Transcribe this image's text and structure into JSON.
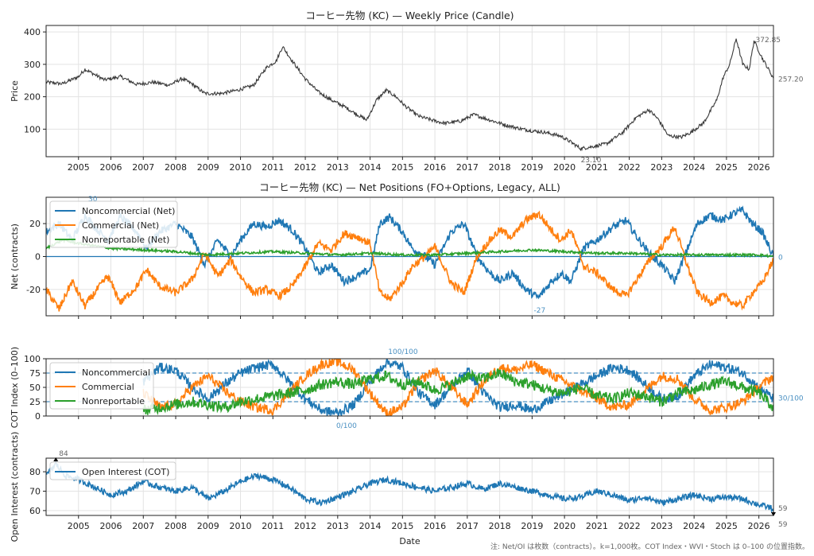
{
  "chart_data": [
    {
      "type": "line",
      "title": "コーヒー先物 (KC) — Weekly Price (Candle)",
      "xlabel": "",
      "ylabel": "Price",
      "xlim": [
        2004.0,
        2026.45
      ],
      "ylim": [
        15,
        420
      ],
      "yticks": [
        100,
        200,
        300,
        400
      ],
      "xticks": [
        2005,
        2006,
        2007,
        2008,
        2009,
        2010,
        2011,
        2012,
        2013,
        2014,
        2015,
        2016,
        2017,
        2018,
        2019,
        2020,
        2021,
        2022,
        2023,
        2024,
        2025,
        2026
      ],
      "grid": true,
      "series": [
        {
          "color": "#3a3a3a",
          "noise": 9,
          "x": [
            2004.0,
            2004.5,
            2005.0,
            2005.2,
            2005.8,
            2006.3,
            2006.8,
            2007.3,
            2007.8,
            2008.2,
            2008.5,
            2008.9,
            2009.4,
            2009.9,
            2010.4,
            2010.8,
            2011.1,
            2011.3,
            2011.6,
            2012.0,
            2012.4,
            2012.8,
            2013.2,
            2013.6,
            2013.9,
            2014.2,
            2014.5,
            2014.8,
            2015.1,
            2015.5,
            2015.9,
            2016.3,
            2016.8,
            2017.2,
            2017.7,
            2018.2,
            2018.7,
            2019.0,
            2019.4,
            2019.9,
            2020.2,
            2020.5,
            2020.8,
            2021.3,
            2021.8,
            2022.2,
            2022.6,
            2022.9,
            2023.2,
            2023.6,
            2023.9,
            2024.3,
            2024.7,
            2024.9,
            2025.1,
            2025.3,
            2025.5,
            2025.7,
            2025.85,
            2026.1,
            2026.45
          ],
          "y": [
            245,
            240,
            262,
            285,
            252,
            262,
            238,
            245,
            236,
            256,
            240,
            210,
            210,
            220,
            235,
            290,
            310,
            355,
            310,
            255,
            215,
            190,
            170,
            145,
            128,
            190,
            220,
            200,
            170,
            140,
            128,
            118,
            125,
            145,
            128,
            112,
            100,
            95,
            90,
            78,
            60,
            40,
            45,
            55,
            90,
            135,
            160,
            130,
            80,
            75,
            90,
            120,
            190,
            260,
            300,
            380,
            300,
            285,
            372.85,
            320,
            257.2
          ]
        }
      ],
      "annotations": [
        {
          "label": "372.85",
          "x": 2025.85,
          "y": 372.85
        },
        {
          "label": "257.20",
          "x": 2026.45,
          "y": 257.2
        },
        {
          "label": "23.10",
          "x": 2020.6,
          "y": 23.1
        }
      ]
    },
    {
      "type": "line",
      "title": "コーヒー先物 (KC) — Net Positions (FO+Options, Legacy, ALL)",
      "xlabel": "",
      "ylabel": "Net (contracts)",
      "xlim": [
        2004.0,
        2026.45
      ],
      "ylim": [
        -36,
        36
      ],
      "yticks": [
        -20,
        0,
        20
      ],
      "grid": true,
      "legend": "top-left",
      "hline": 0,
      "series": [
        {
          "name": "Noncommercial (Net)",
          "color": "#1f77b4",
          "noise": 4,
          "x": [
            2004.0,
            2004.4,
            2004.8,
            2005.2,
            2005.5,
            2005.9,
            2006.3,
            2006.8,
            2007.1,
            2007.5,
            2008.0,
            2008.5,
            2008.9,
            2009.3,
            2009.7,
            2010.0,
            2010.4,
            2010.8,
            2011.2,
            2011.6,
            2012.0,
            2012.4,
            2012.8,
            2013.2,
            2013.6,
            2014.0,
            2014.3,
            2014.6,
            2015.0,
            2015.3,
            2015.7,
            2016.0,
            2016.5,
            2016.9,
            2017.3,
            2017.7,
            2018.0,
            2018.4,
            2018.8,
            2019.2,
            2019.6,
            2019.9,
            2020.2,
            2020.6,
            2021.0,
            2021.5,
            2021.9,
            2022.3,
            2022.7,
            2023.0,
            2023.4,
            2023.8,
            2024.1,
            2024.5,
            2024.9,
            2025.2,
            2025.5,
            2025.8,
            2026.1,
            2026.45
          ],
          "y": [
            15,
            20,
            10,
            25,
            18,
            10,
            24,
            15,
            5,
            15,
            20,
            12,
            -5,
            10,
            0,
            10,
            20,
            18,
            22,
            16,
            5,
            -10,
            -5,
            -15,
            -12,
            -8,
            20,
            24,
            15,
            5,
            0,
            -5,
            15,
            20,
            0,
            -10,
            -15,
            -10,
            -20,
            -25,
            -15,
            -10,
            -15,
            5,
            10,
            18,
            22,
            10,
            0,
            -5,
            -15,
            5,
            20,
            25,
            22,
            26,
            28,
            20,
            15,
            0
          ]
        },
        {
          "name": "Commercial (Net)",
          "color": "#ff7f0e",
          "noise": 4,
          "x": [
            2004.0,
            2004.4,
            2004.8,
            2005.2,
            2005.5,
            2005.9,
            2006.3,
            2006.8,
            2007.1,
            2007.5,
            2008.0,
            2008.5,
            2008.9,
            2009.3,
            2009.7,
            2010.0,
            2010.4,
            2010.8,
            2011.2,
            2011.6,
            2012.0,
            2012.4,
            2012.8,
            2013.2,
            2013.6,
            2014.0,
            2014.3,
            2014.6,
            2015.0,
            2015.3,
            2015.7,
            2016.0,
            2016.5,
            2016.9,
            2017.3,
            2017.7,
            2018.0,
            2018.4,
            2018.8,
            2019.2,
            2019.6,
            2019.9,
            2020.2,
            2020.6,
            2021.0,
            2021.5,
            2021.9,
            2022.3,
            2022.7,
            2023.0,
            2023.4,
            2023.8,
            2024.1,
            2024.5,
            2024.9,
            2025.2,
            2025.5,
            2025.8,
            2026.1,
            2026.45
          ],
          "y": [
            -20,
            -32,
            -15,
            -30,
            -22,
            -12,
            -28,
            -18,
            -8,
            -18,
            -22,
            -14,
            2,
            -12,
            -2,
            -12,
            -22,
            -20,
            -24,
            -18,
            -6,
            8,
            4,
            14,
            12,
            8,
            -22,
            -26,
            -16,
            -6,
            0,
            6,
            -16,
            -22,
            0,
            10,
            16,
            12,
            22,
            26,
            16,
            10,
            16,
            -6,
            -10,
            -20,
            -24,
            -12,
            0,
            6,
            18,
            -6,
            -22,
            -28,
            -24,
            -28,
            -30,
            -22,
            -16,
            -2
          ]
        },
        {
          "name": "Nonreportable (Net)",
          "color": "#2ca02c",
          "noise": 1.2,
          "x": [
            2004.0,
            2004.5,
            2005.0,
            2006.0,
            2007.0,
            2008.0,
            2009.0,
            2010.0,
            2011.0,
            2012.0,
            2013.0,
            2014.0,
            2015.0,
            2016.0,
            2017.0,
            2018.0,
            2019.0,
            2020.0,
            2021.0,
            2022.0,
            2023.0,
            2024.0,
            2025.0,
            2026.0,
            2026.45
          ],
          "y": [
            5,
            10,
            8,
            5,
            4,
            3,
            1,
            2,
            3,
            2,
            1,
            2,
            1,
            1,
            2,
            3,
            4,
            3,
            2,
            2,
            1,
            1,
            1,
            1,
            0
          ]
        }
      ],
      "annotations": [
        {
          "label": "30",
          "x": 2005.35,
          "y": 30
        },
        {
          "label": "-27",
          "x": 2019.2,
          "y": -27
        },
        {
          "label": "0",
          "x": 2026.45,
          "y": 0
        }
      ]
    },
    {
      "type": "line",
      "title": "",
      "xlabel": "",
      "ylabel": "COT Index (0–100)",
      "xlim": [
        2004.0,
        2026.45
      ],
      "ylim": [
        0,
        100
      ],
      "yticks": [
        0,
        25,
        50,
        75,
        100
      ],
      "grid": true,
      "legend": "top-left",
      "reference_lines": [
        75,
        25
      ],
      "series": [
        {
          "name": "Noncommercial",
          "color": "#1f77b4",
          "noise": 14,
          "x": [
            2007.0,
            2007.5,
            2008.0,
            2008.5,
            2009.0,
            2009.5,
            2010.0,
            2010.5,
            2011.0,
            2011.5,
            2012.0,
            2012.5,
            2013.0,
            2013.5,
            2014.0,
            2014.5,
            2015.0,
            2015.5,
            2016.0,
            2016.5,
            2017.0,
            2017.5,
            2018.0,
            2018.5,
            2019.0,
            2019.5,
            2020.0,
            2020.5,
            2021.0,
            2021.5,
            2022.0,
            2022.5,
            2023.0,
            2023.5,
            2024.0,
            2024.5,
            2025.0,
            2025.5,
            2026.0,
            2026.45
          ],
          "y": [
            60,
            85,
            80,
            50,
            30,
            55,
            75,
            85,
            90,
            60,
            30,
            10,
            5,
            20,
            60,
            95,
            85,
            40,
            20,
            50,
            80,
            40,
            15,
            20,
            10,
            25,
            40,
            55,
            70,
            85,
            80,
            55,
            30,
            35,
            70,
            90,
            85,
            75,
            50,
            30
          ]
        },
        {
          "name": "Commercial",
          "color": "#ff7f0e",
          "noise": 14,
          "x": [
            2007.0,
            2007.5,
            2008.0,
            2008.5,
            2009.0,
            2009.5,
            2010.0,
            2010.5,
            2011.0,
            2011.5,
            2012.0,
            2012.5,
            2013.0,
            2013.5,
            2014.0,
            2014.5,
            2015.0,
            2015.5,
            2016.0,
            2016.5,
            2017.0,
            2017.5,
            2018.0,
            2018.5,
            2019.0,
            2019.5,
            2020.0,
            2020.5,
            2021.0,
            2021.5,
            2022.0,
            2022.5,
            2023.0,
            2023.5,
            2024.0,
            2024.5,
            2025.0,
            2025.5,
            2026.0,
            2026.45
          ],
          "y": [
            40,
            15,
            20,
            50,
            70,
            45,
            25,
            15,
            10,
            40,
            70,
            90,
            95,
            80,
            40,
            5,
            15,
            60,
            80,
            50,
            20,
            60,
            85,
            80,
            90,
            75,
            60,
            45,
            30,
            15,
            20,
            45,
            70,
            65,
            30,
            10,
            15,
            25,
            50,
            70
          ]
        },
        {
          "name": "Nonreportable",
          "color": "#2ca02c",
          "noise": 16,
          "x": [
            2007.0,
            2007.5,
            2008.0,
            2008.5,
            2009.0,
            2009.5,
            2010.0,
            2010.5,
            2011.0,
            2011.5,
            2012.0,
            2012.5,
            2013.0,
            2013.5,
            2014.0,
            2014.5,
            2015.0,
            2015.5,
            2016.0,
            2016.5,
            2017.0,
            2017.5,
            2018.0,
            2018.5,
            2019.0,
            2019.5,
            2020.0,
            2020.5,
            2021.0,
            2021.5,
            2022.0,
            2022.5,
            2023.0,
            2023.5,
            2024.0,
            2024.5,
            2025.0,
            2025.5,
            2026.0,
            2026.45
          ],
          "y": [
            10,
            15,
            20,
            25,
            20,
            15,
            25,
            30,
            35,
            40,
            45,
            55,
            60,
            55,
            65,
            70,
            55,
            60,
            45,
            55,
            70,
            65,
            75,
            60,
            55,
            45,
            40,
            50,
            35,
            30,
            40,
            35,
            25,
            40,
            45,
            55,
            60,
            50,
            40,
            15
          ]
        }
      ],
      "annotations": [
        {
          "label": "100/100",
          "x": 2014.9,
          "y": 100
        },
        {
          "label": "0/100",
          "x": 2013.2,
          "y": 0
        },
        {
          "label": "30/100",
          "x": 2026.45,
          "y": 30
        }
      ]
    },
    {
      "type": "line",
      "title": "",
      "xlabel": "Date",
      "ylabel": "Open Interest (contracts)",
      "xlim": [
        2004.0,
        2026.45
      ],
      "ylim": [
        57.5,
        87
      ],
      "yticks": [
        60,
        70,
        80
      ],
      "xticks": [
        2005,
        2006,
        2007,
        2008,
        2009,
        2010,
        2011,
        2012,
        2013,
        2014,
        2015,
        2016,
        2017,
        2018,
        2019,
        2020,
        2021,
        2022,
        2023,
        2024,
        2025,
        2026
      ],
      "grid": true,
      "legend": "top-left",
      "series": [
        {
          "name": "Open Interest (COT)",
          "color": "#1f77b4",
          "noise": 2.5,
          "x": [
            2004.0,
            2004.3,
            2004.6,
            2005.0,
            2005.5,
            2006.0,
            2006.5,
            2007.0,
            2007.5,
            2008.0,
            2008.5,
            2009.0,
            2009.5,
            2010.0,
            2010.5,
            2011.0,
            2011.5,
            2012.0,
            2012.5,
            2013.0,
            2013.5,
            2014.0,
            2014.5,
            2015.0,
            2015.5,
            2016.0,
            2016.5,
            2017.0,
            2017.5,
            2018.0,
            2018.5,
            2019.0,
            2019.5,
            2020.0,
            2020.5,
            2021.0,
            2021.5,
            2022.0,
            2022.5,
            2023.0,
            2023.5,
            2024.0,
            2024.5,
            2025.0,
            2025.5,
            2026.0,
            2026.45
          ],
          "y": [
            78,
            84,
            78,
            76,
            72,
            68,
            70,
            75,
            72,
            70,
            72,
            66,
            70,
            75,
            78,
            76,
            72,
            66,
            64,
            67,
            70,
            74,
            76,
            74,
            72,
            70,
            72,
            74,
            71,
            74,
            72,
            70,
            68,
            66,
            67,
            70,
            68,
            65,
            67,
            64,
            66,
            68,
            66,
            67,
            66,
            63,
            61
          ]
        }
      ],
      "annotations": [
        {
          "label": "84",
          "x": 2004.3,
          "y": 84
        },
        {
          "label": "59",
          "x": 2026.45,
          "y": 61.5
        },
        {
          "label": "59",
          "x": 2026.45,
          "y": 59
        }
      ]
    }
  ],
  "footnote": "注: Net/OI は枚数（contracts）。k=1,000枚。COT Index・WVI・Stoch は 0–100 の位置指数。"
}
